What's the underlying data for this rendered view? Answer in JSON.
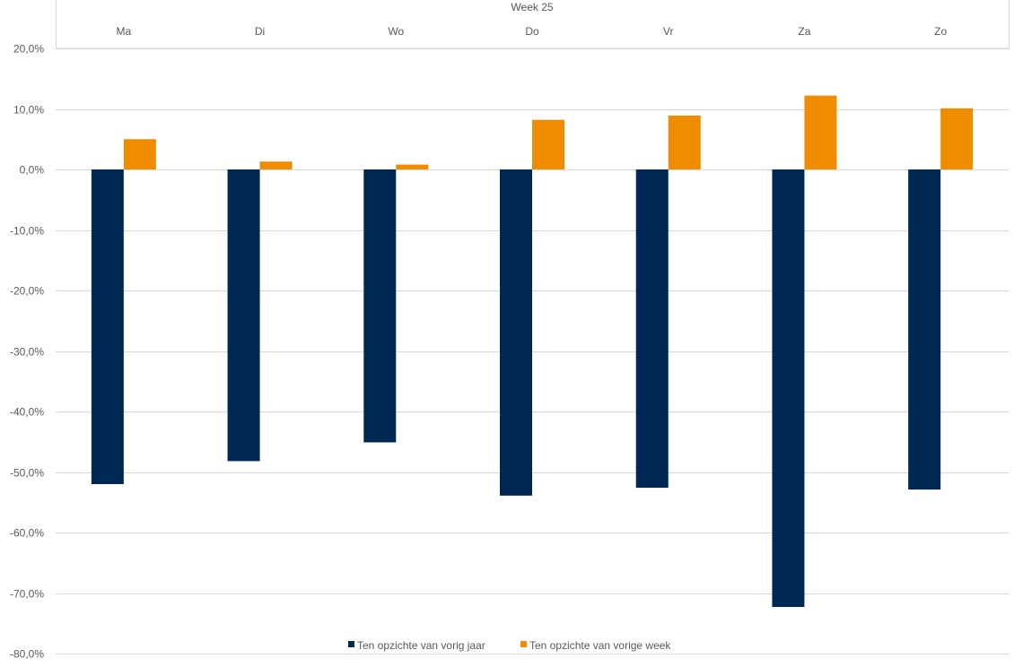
{
  "chart_data": {
    "type": "bar",
    "group_label": "Week 25",
    "categories": [
      "Ma",
      "Di",
      "Wo",
      "Do",
      "Vr",
      "Za",
      "Zo"
    ],
    "series": [
      {
        "name": "Ten opzichte van vorig jaar",
        "color": "#002855",
        "values": [
          -52.0,
          -48.2,
          -45.1,
          -53.9,
          -52.6,
          -72.3,
          -52.9
        ]
      },
      {
        "name": "Ten opzichte van vorige week",
        "color": "#f08c00",
        "values": [
          5.0,
          1.3,
          0.8,
          8.2,
          8.9,
          12.2,
          10.1
        ]
      }
    ],
    "ylim": [
      -80,
      20
    ],
    "ytick_step": 10,
    "ytick_labels": [
      "20,0%",
      "10,0%",
      "0,0%",
      "-10,0%",
      "-20,0%",
      "-30,0%",
      "-40,0%",
      "-50,0%",
      "-60,0%",
      "-70,0%",
      "-80,0%"
    ],
    "grid": true,
    "legend_position": "bottom",
    "axis_color": "#d9d9d9",
    "title": "",
    "xlabel": "",
    "ylabel": ""
  }
}
